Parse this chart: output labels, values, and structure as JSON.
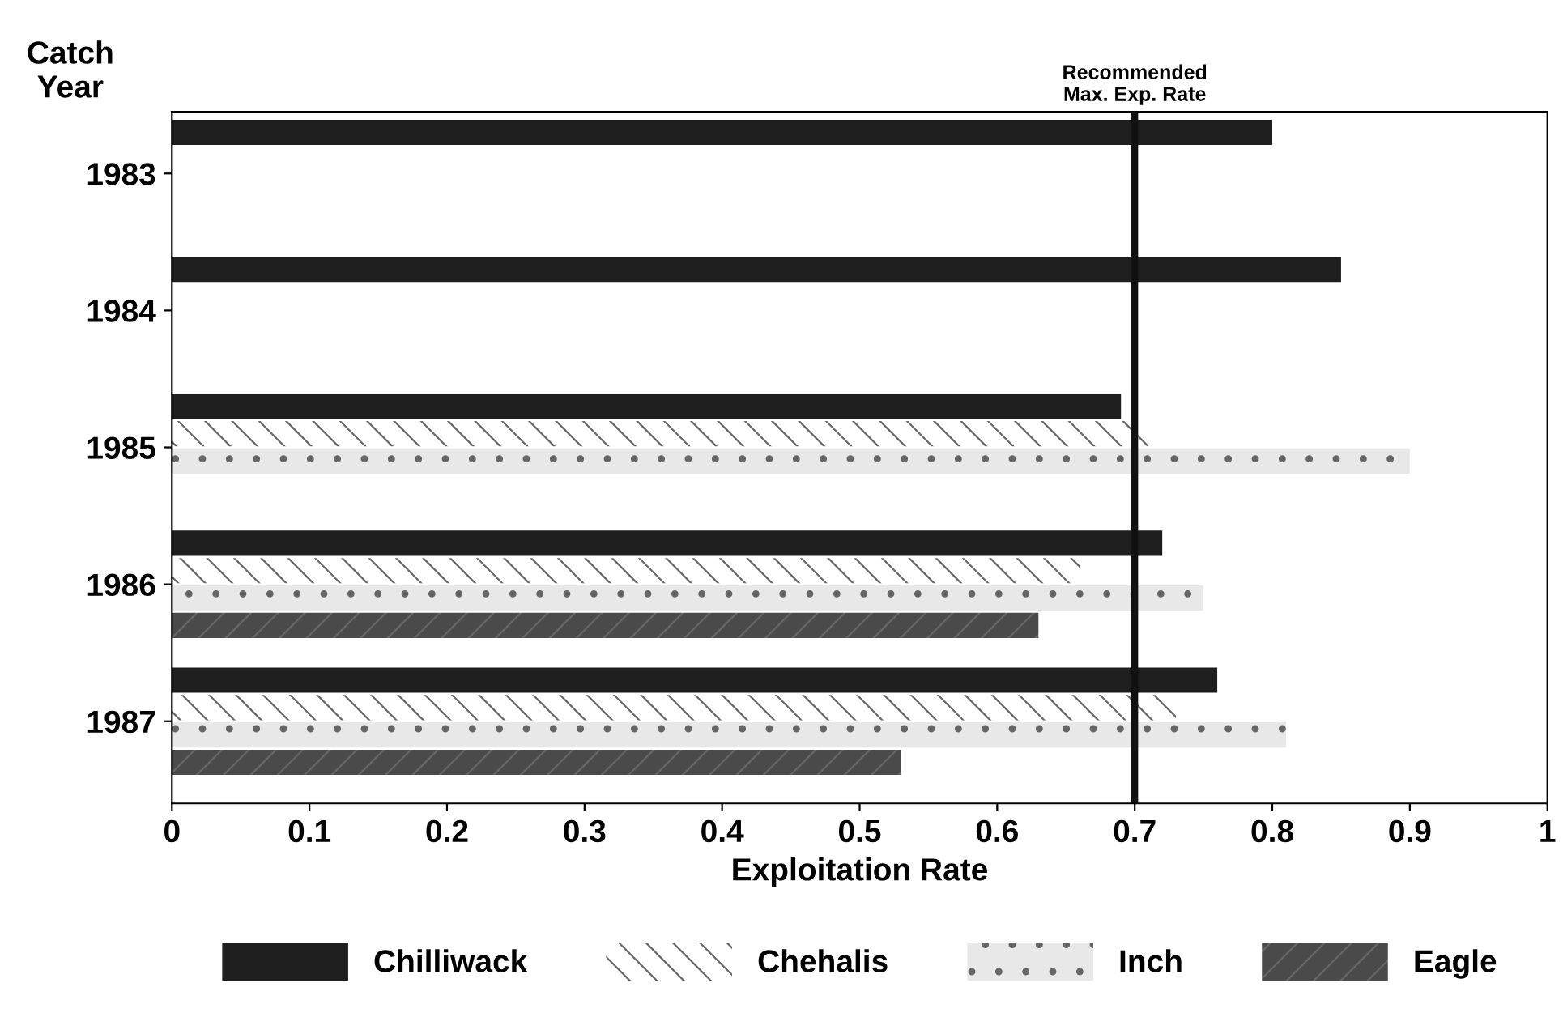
{
  "chart_data": {
    "type": "bar",
    "orientation": "horizontal",
    "categories": [
      "1983",
      "1984",
      "1985",
      "1986",
      "1987"
    ],
    "xlabel": "Exploitation Rate",
    "ylabel": "Catch\nYear",
    "series": [
      {
        "name": "Chilliwack",
        "color": "#1e1e1e",
        "values": [
          0.8,
          0.85,
          0.69,
          0.72,
          0.76
        ]
      },
      {
        "name": "Chehalis",
        "color": "#ffffff",
        "values": [
          null,
          null,
          0.71,
          0.66,
          0.73
        ]
      },
      {
        "name": "Inch",
        "color": "#e8e8e8",
        "values": [
          null,
          null,
          0.9,
          0.75,
          0.81
        ]
      },
      {
        "name": "Eagle",
        "color": "#4a4a4a",
        "values": [
          null,
          null,
          null,
          0.63,
          0.53
        ]
      }
    ],
    "xlim": [
      0,
      1
    ],
    "xticks": [
      0,
      0.1,
      0.2,
      0.3,
      0.4,
      0.5,
      0.6,
      0.7,
      0.8,
      0.9,
      1
    ],
    "ref_lines": [
      {
        "axis": "x",
        "value": 0.7,
        "label": "Recommended\nMax. Exp. Rate",
        "color": "#111111"
      }
    ],
    "grid": false,
    "legend": "bottom"
  }
}
